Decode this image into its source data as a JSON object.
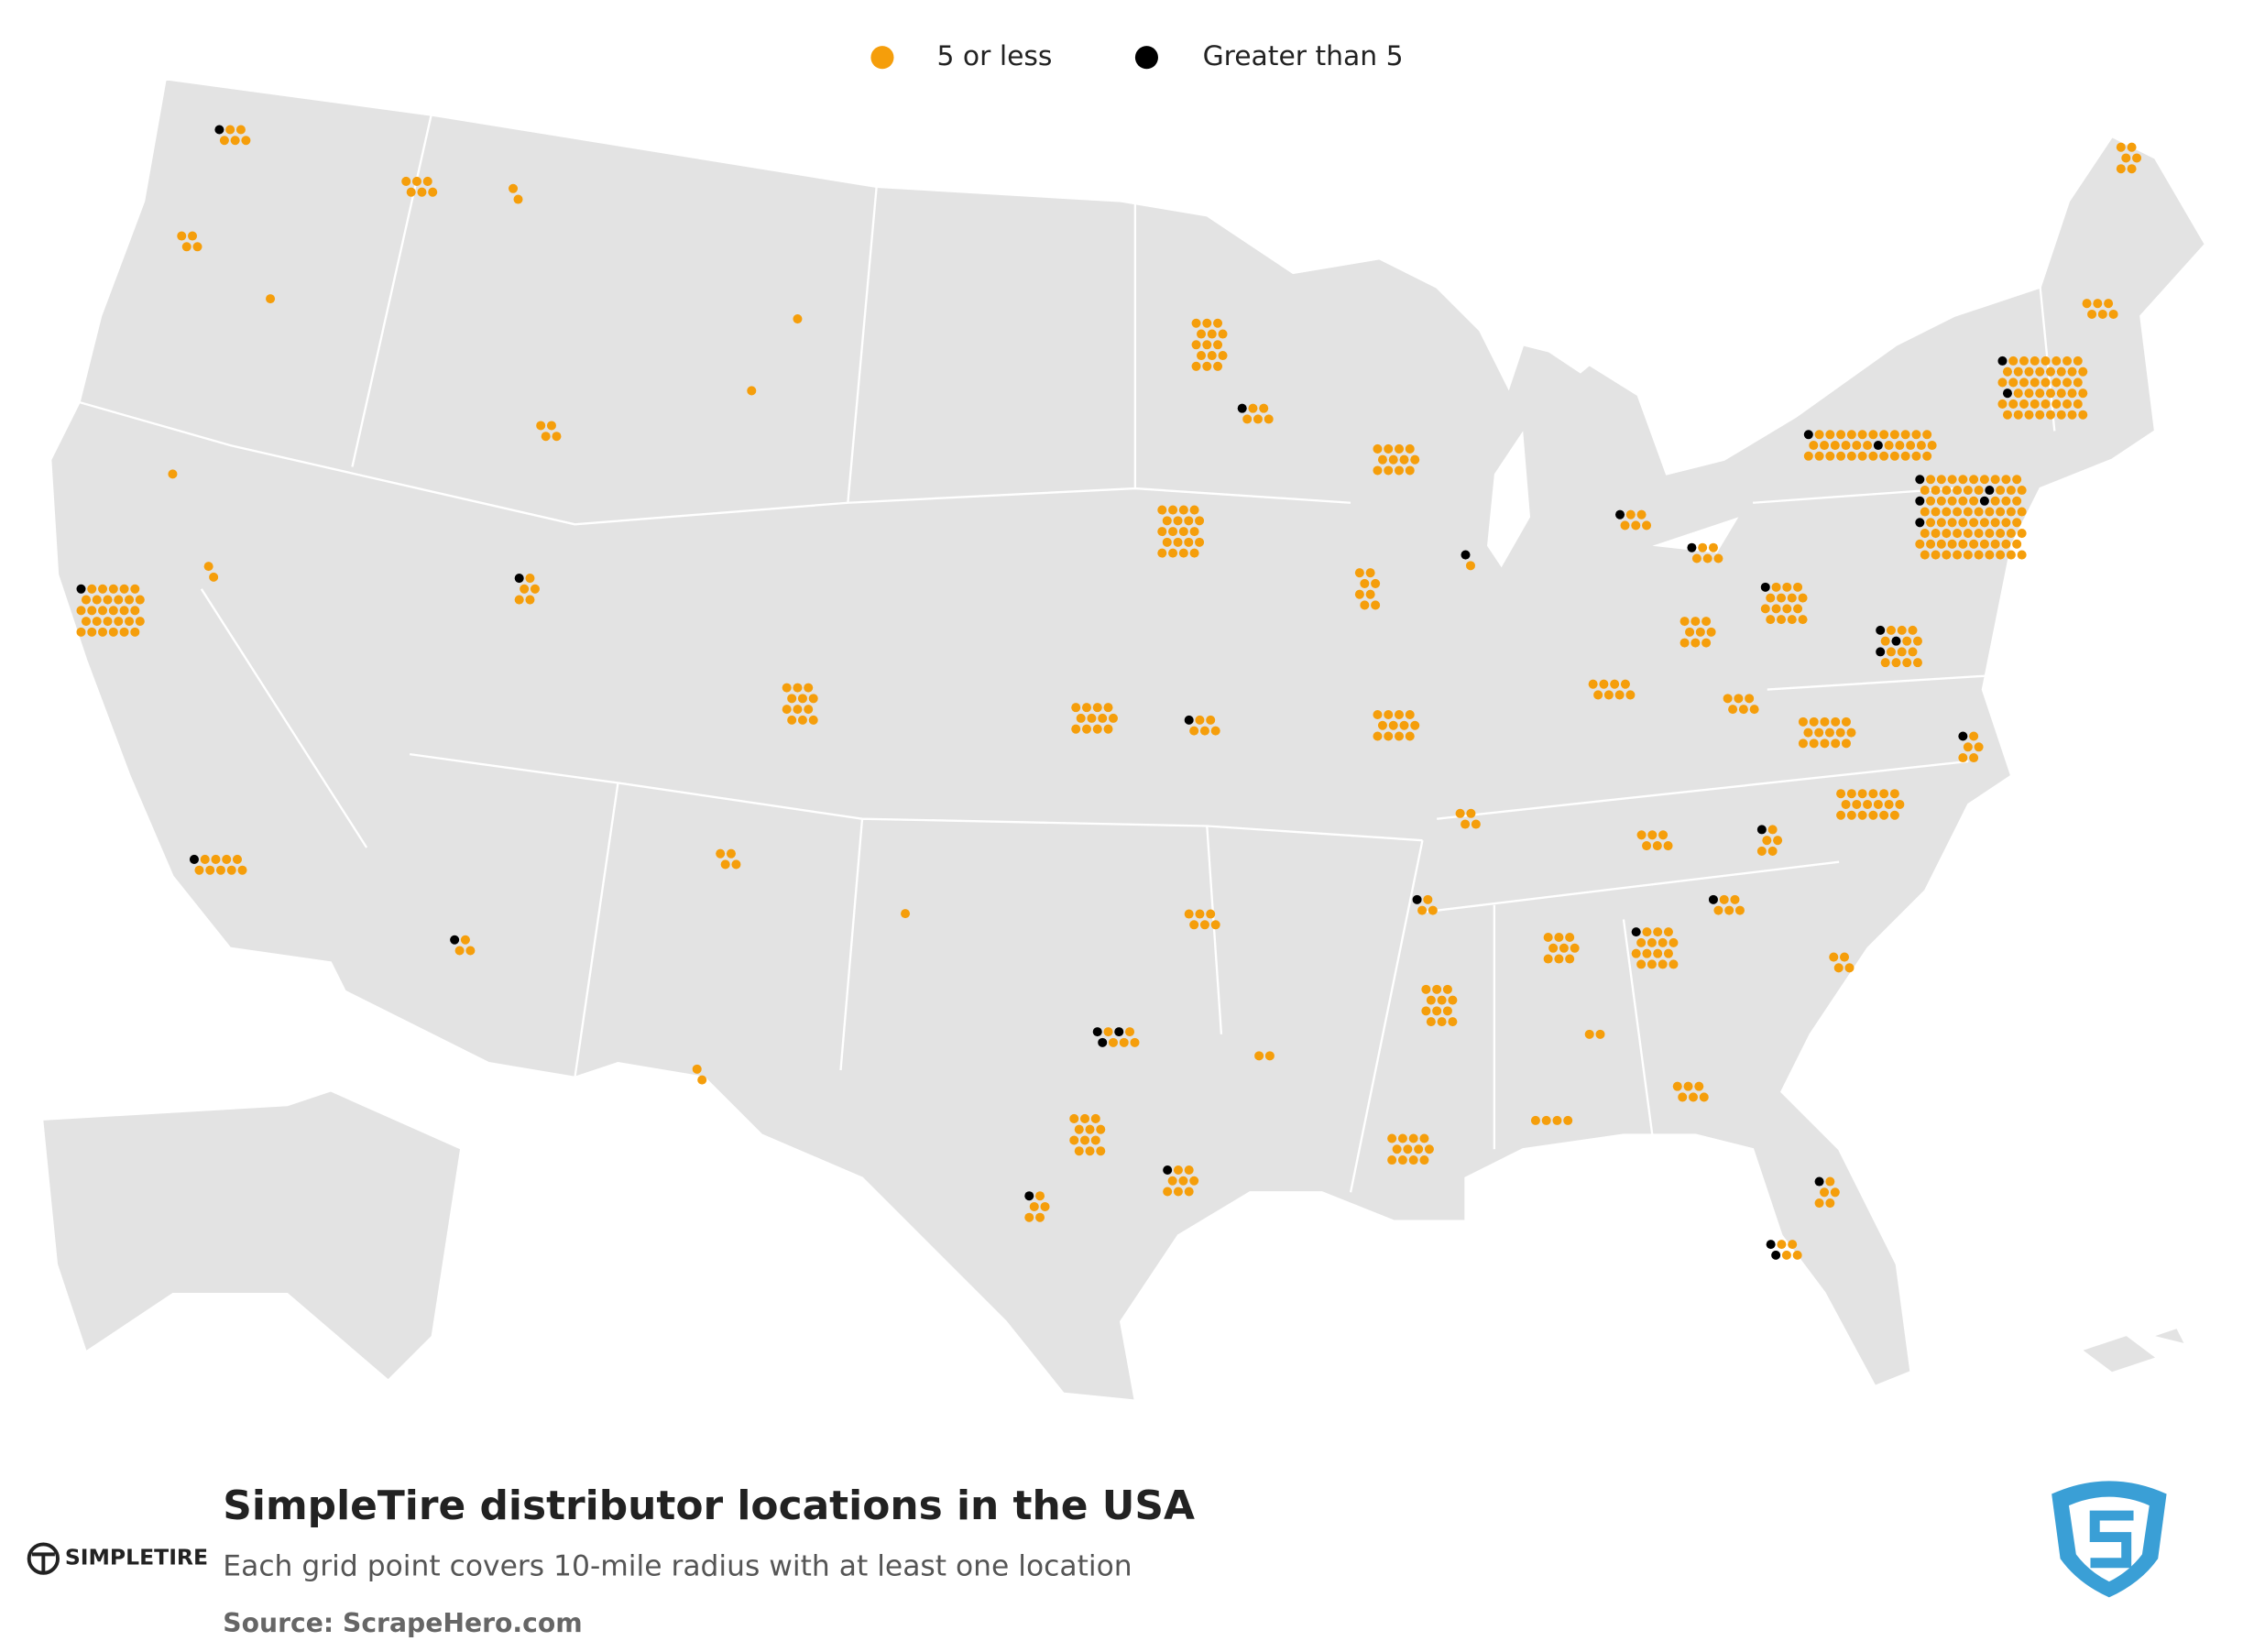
{
  "legend": {
    "items": [
      {
        "label": "5 or less",
        "color": "#f59e0b"
      },
      {
        "label": "Greater than 5",
        "color": "#000000"
      }
    ]
  },
  "footer": {
    "title": "SimpleTire distributor locations in the USA",
    "subtitle": "Each grid point covers 10-mile radius with at least one location",
    "source": "Source: ScrapeHero.com",
    "brand": "SIMPLETIRE"
  }
}
